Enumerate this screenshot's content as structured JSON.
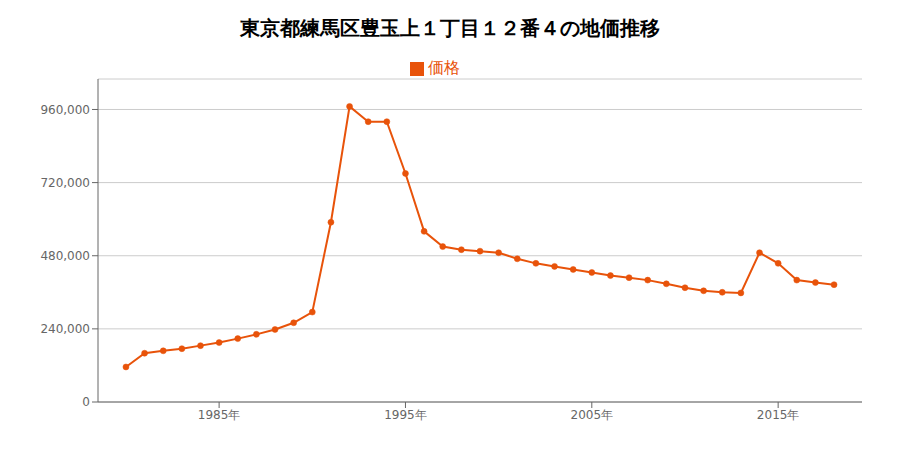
{
  "chart_data": {
    "type": "line",
    "title": "東京都練馬区豊玉上１丁目１２番４の地価推移",
    "x": [
      1980,
      1981,
      1982,
      1983,
      1984,
      1985,
      1986,
      1987,
      1988,
      1989,
      1990,
      1991,
      1992,
      1993,
      1994,
      1995,
      1996,
      1997,
      1998,
      1999,
      2000,
      2001,
      2002,
      2003,
      2004,
      2005,
      2006,
      2007,
      2008,
      2009,
      2010,
      2011,
      2012,
      2013,
      2014,
      2015,
      2016,
      2017,
      2018
    ],
    "series": [
      {
        "name": "価格",
        "color": "#e8530a",
        "marker": "circle",
        "values": [
          115000,
          160000,
          168000,
          175000,
          185000,
          195000,
          208000,
          222000,
          238000,
          260000,
          295000,
          590000,
          970000,
          920000,
          920000,
          750000,
          560000,
          510000,
          500000,
          495000,
          490000,
          470000,
          455000,
          445000,
          435000,
          425000,
          415000,
          408000,
          400000,
          388000,
          375000,
          365000,
          360000,
          358000,
          490000,
          455000,
          400000,
          392000,
          385000
        ]
      }
    ],
    "xlim": [
      1978.5,
      2019.5
    ],
    "xticks": [
      {
        "value": 1985,
        "label": "1985年"
      },
      {
        "value": 1995,
        "label": "1995年"
      },
      {
        "value": 2005,
        "label": "2005年"
      },
      {
        "value": 2015,
        "label": "2015年"
      }
    ],
    "ylim": [
      0,
      1060000
    ],
    "yticks": [
      0,
      {
        "value": 240000,
        "label": "240,000"
      },
      {
        "value": 480000,
        "label": "480,000"
      },
      {
        "value": 720000,
        "label": "720,000"
      },
      {
        "value": 960000,
        "label": "960,000"
      }
    ],
    "grid": "y",
    "legend": "top"
  }
}
